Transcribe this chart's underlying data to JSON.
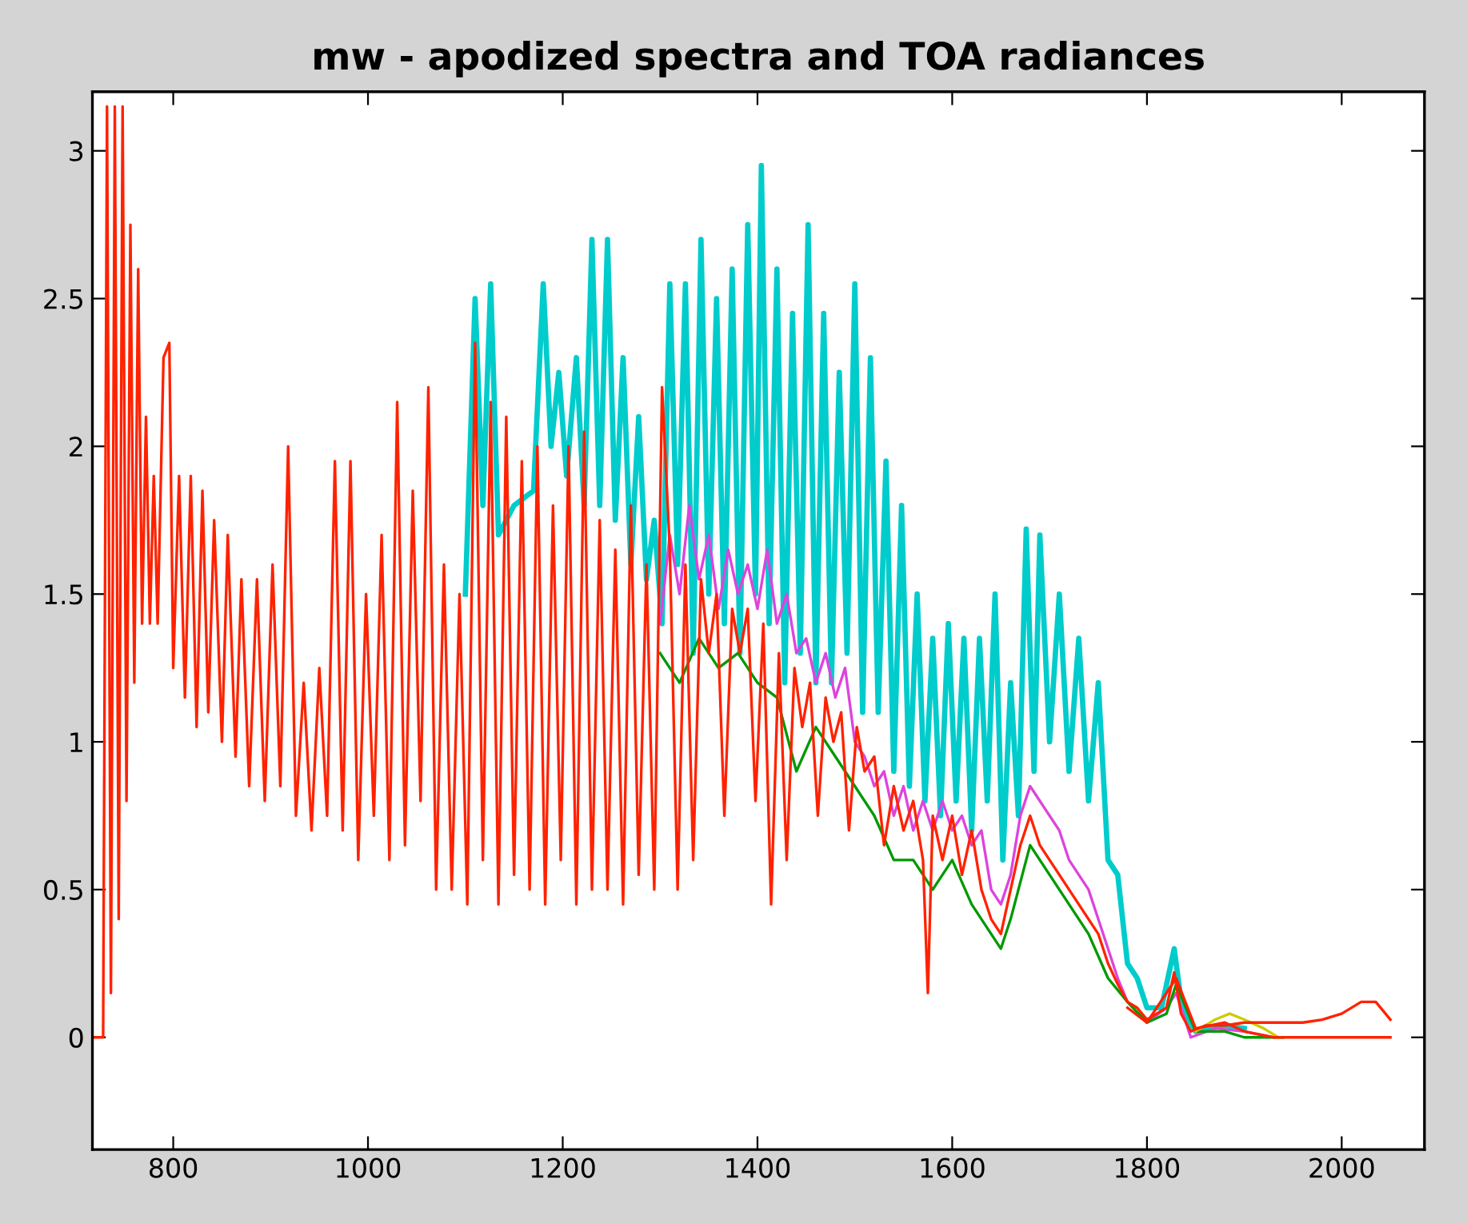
{
  "chart_data": {
    "type": "line",
    "title": "mw - apodized spectra and TOA radiances",
    "xlim": [
      717,
      2085
    ],
    "ylim": [
      -0.38,
      3.2
    ],
    "xticks": [
      800,
      1000,
      1200,
      1400,
      1600,
      1800,
      2000
    ],
    "yticks": [
      0,
      0.5,
      1,
      1.5,
      2,
      2.5,
      3
    ],
    "grid": false,
    "legend": false,
    "series": [
      {
        "color": "#00cccc",
        "x": [
          1100,
          1110,
          1118,
          1126,
          1134,
          1150,
          1170,
          1180,
          1188,
          1196,
          1204,
          1214,
          1222,
          1230,
          1238,
          1246,
          1254,
          1262,
          1270,
          1278,
          1286,
          1294,
          1302,
          1310,
          1318,
          1326,
          1334,
          1342,
          1350,
          1358,
          1366,
          1374,
          1382,
          1390,
          1398,
          1404,
          1412,
          1420,
          1428,
          1436,
          1444,
          1452,
          1460,
          1468,
          1476,
          1484,
          1492,
          1500,
          1508,
          1516,
          1524,
          1532,
          1540,
          1548,
          1556,
          1564,
          1572,
          1580,
          1588,
          1596,
          1604,
          1612,
          1620,
          1628,
          1636,
          1644,
          1652,
          1660,
          1668,
          1676,
          1684,
          1690,
          1700,
          1710,
          1720,
          1730,
          1740,
          1750,
          1760,
          1770,
          1780,
          1790,
          1800,
          1815,
          1828,
          1836,
          1850,
          1880,
          1900
        ],
        "values": [
          1.5,
          2.5,
          1.8,
          2.55,
          1.7,
          1.8,
          1.85,
          2.55,
          2.0,
          2.25,
          1.9,
          2.3,
          1.8,
          2.7,
          1.8,
          2.7,
          1.75,
          2.3,
          1.6,
          2.1,
          1.55,
          1.75,
          1.4,
          2.55,
          1.6,
          2.55,
          1.3,
          2.7,
          1.5,
          2.5,
          1.4,
          2.6,
          1.3,
          2.75,
          1.5,
          2.95,
          1.4,
          2.6,
          1.2,
          2.45,
          1.3,
          2.75,
          1.2,
          2.45,
          1.2,
          2.25,
          1.3,
          2.55,
          1.1,
          2.3,
          1.1,
          1.95,
          0.9,
          1.8,
          0.85,
          1.5,
          0.8,
          1.35,
          0.75,
          1.4,
          0.8,
          1.35,
          0.7,
          1.35,
          0.8,
          1.5,
          0.6,
          1.2,
          0.75,
          1.72,
          0.9,
          1.7,
          1.0,
          1.5,
          0.9,
          1.35,
          0.8,
          1.2,
          0.6,
          0.55,
          0.25,
          0.2,
          0.1,
          0.1,
          0.3,
          0.1,
          0.02,
          0.04,
          0.03
        ]
      },
      {
        "color": "#dd44dd",
        "x": [
          1300,
          1310,
          1320,
          1330,
          1340,
          1350,
          1360,
          1370,
          1380,
          1390,
          1400,
          1410,
          1420,
          1430,
          1440,
          1450,
          1460,
          1470,
          1480,
          1490,
          1500,
          1510,
          1520,
          1530,
          1540,
          1550,
          1560,
          1570,
          1580,
          1590,
          1600,
          1610,
          1620,
          1630,
          1640,
          1650,
          1660,
          1670,
          1680,
          1690,
          1700,
          1710,
          1720,
          1730,
          1740,
          1750,
          1760,
          1770,
          1780,
          1800,
          1820,
          1830,
          1845,
          1870,
          1900,
          1930
        ],
        "values": [
          1.4,
          1.7,
          1.5,
          1.8,
          1.55,
          1.7,
          1.45,
          1.65,
          1.5,
          1.6,
          1.45,
          1.65,
          1.4,
          1.5,
          1.3,
          1.35,
          1.2,
          1.3,
          1.15,
          1.25,
          1.0,
          0.95,
          0.85,
          0.9,
          0.75,
          0.85,
          0.7,
          0.8,
          0.7,
          0.8,
          0.7,
          0.75,
          0.65,
          0.7,
          0.5,
          0.45,
          0.55,
          0.75,
          0.85,
          0.8,
          0.75,
          0.7,
          0.6,
          0.55,
          0.5,
          0.4,
          0.3,
          0.2,
          0.12,
          0.05,
          0.1,
          0.15,
          0.0,
          0.03,
          0.02,
          0.0
        ]
      },
      {
        "color": "#009900",
        "x": [
          1300,
          1320,
          1340,
          1360,
          1380,
          1400,
          1420,
          1440,
          1460,
          1480,
          1500,
          1520,
          1540,
          1560,
          1580,
          1600,
          1620,
          1640,
          1650,
          1660,
          1680,
          1700,
          1720,
          1740,
          1760,
          1780,
          1800,
          1820,
          1830,
          1850,
          1880,
          1900,
          1940
        ],
        "values": [
          1.3,
          1.2,
          1.35,
          1.25,
          1.3,
          1.2,
          1.15,
          0.9,
          1.05,
          0.95,
          0.85,
          0.75,
          0.6,
          0.6,
          0.5,
          0.6,
          0.45,
          0.35,
          0.3,
          0.4,
          0.65,
          0.55,
          0.45,
          0.35,
          0.2,
          0.12,
          0.05,
          0.08,
          0.18,
          0.02,
          0.02,
          0.0,
          0.0
        ]
      },
      {
        "color": "#cccc00",
        "x": [
          1850,
          1870,
          1885,
          1900,
          1920,
          1935
        ],
        "values": [
          0.02,
          0.06,
          0.08,
          0.06,
          0.03,
          0.0
        ]
      },
      {
        "color": "#ff2200",
        "x": [
          1780,
          1800,
          1830,
          1850,
          1880,
          1900,
          1930,
          2050
        ],
        "values": [
          0.1,
          0.05,
          0.2,
          0.03,
          0.05,
          0.02,
          0.0,
          0.0
        ]
      },
      {
        "color": "#ff2200",
        "x": [
          717,
          728,
          732,
          736,
          740,
          744,
          748,
          752,
          756,
          760,
          764,
          768,
          772,
          776,
          780,
          784,
          790,
          796,
          800,
          806,
          812,
          818,
          824,
          830,
          836,
          842,
          850,
          856,
          864,
          870,
          878,
          886,
          894,
          902,
          910,
          918,
          926,
          934,
          942,
          950,
          958,
          966,
          974,
          982,
          990,
          998,
          1006,
          1014,
          1022,
          1030,
          1038,
          1046,
          1054,
          1062,
          1070,
          1078,
          1086,
          1094,
          1102,
          1110,
          1118,
          1126,
          1134,
          1142,
          1150,
          1158,
          1166,
          1174,
          1182,
          1190,
          1198,
          1206,
          1214,
          1222,
          1230,
          1238,
          1246,
          1254,
          1262,
          1270,
          1278,
          1286,
          1294,
          1302,
          1310,
          1318,
          1326,
          1334,
          1342,
          1350,
          1358,
          1366,
          1374,
          1382,
          1390,
          1398,
          1406,
          1414,
          1422,
          1430,
          1438,
          1446,
          1454,
          1462,
          1470,
          1478,
          1486,
          1494,
          1502,
          1510,
          1520,
          1530,
          1540,
          1550,
          1560,
          1570,
          1575,
          1580,
          1590,
          1600,
          1610,
          1620,
          1630,
          1640,
          1650,
          1660,
          1670,
          1680,
          1690,
          1700,
          1710,
          1720,
          1730,
          1740,
          1750,
          1760,
          1770,
          1780,
          1790,
          1800,
          1810,
          1820,
          1828,
          1835,
          1845,
          1860,
          1880,
          1900,
          1920,
          1940,
          1960,
          1980,
          2000,
          2020,
          2035,
          2045,
          2050
        ],
        "values": [
          0,
          0,
          3.15,
          0.15,
          3.15,
          0.4,
          3.15,
          0.8,
          2.75,
          1.2,
          2.6,
          1.4,
          2.1,
          1.4,
          1.9,
          1.4,
          2.3,
          2.35,
          1.25,
          1.9,
          1.15,
          1.9,
          1.05,
          1.85,
          1.1,
          1.75,
          1.0,
          1.7,
          0.95,
          1.55,
          0.85,
          1.55,
          0.8,
          1.6,
          0.85,
          2.0,
          0.75,
          1.2,
          0.7,
          1.25,
          0.75,
          1.95,
          0.7,
          1.95,
          0.6,
          1.5,
          0.75,
          1.7,
          0.6,
          2.15,
          0.65,
          1.85,
          0.8,
          2.2,
          0.5,
          1.6,
          0.5,
          1.5,
          0.45,
          2.35,
          0.6,
          2.15,
          0.45,
          2.1,
          0.55,
          1.95,
          0.5,
          2.0,
          0.45,
          1.8,
          0.6,
          2.0,
          0.45,
          2.05,
          0.5,
          1.75,
          0.5,
          1.65,
          0.45,
          1.8,
          0.55,
          1.6,
          0.5,
          2.2,
          1.65,
          0.5,
          1.6,
          0.6,
          1.55,
          1.3,
          1.5,
          0.75,
          1.45,
          1.3,
          1.45,
          0.8,
          1.4,
          0.45,
          1.3,
          0.6,
          1.25,
          1.05,
          1.2,
          0.75,
          1.15,
          1.0,
          1.1,
          0.7,
          1.05,
          0.9,
          0.95,
          0.65,
          0.85,
          0.7,
          0.8,
          0.6,
          0.15,
          0.75,
          0.6,
          0.75,
          0.55,
          0.7,
          0.5,
          0.4,
          0.35,
          0.5,
          0.65,
          0.75,
          0.65,
          0.6,
          0.55,
          0.5,
          0.45,
          0.4,
          0.35,
          0.25,
          0.18,
          0.12,
          0.1,
          0.06,
          0.08,
          0.1,
          0.22,
          0.08,
          0.02,
          0.04,
          0.04,
          0.05,
          0.05,
          0.05,
          0.05,
          0.06,
          0.08,
          0.12,
          0.12,
          0.08,
          0.06
        ]
      }
    ]
  }
}
